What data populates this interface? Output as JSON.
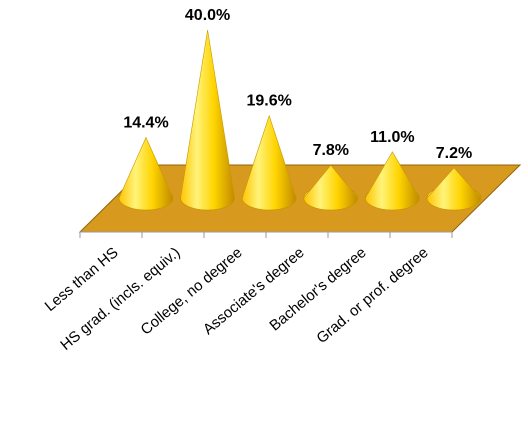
{
  "chart_data": {
    "type": "bar",
    "style": "3d-cone",
    "categories": [
      "Less than HS",
      "HS grad. (incls. equiv.)",
      "College, no degree",
      "Associate's degree",
      "Bachelor's degree",
      "Grad. or prof. degree"
    ],
    "values": [
      14.4,
      40.0,
      19.6,
      7.8,
      11.0,
      7.2
    ],
    "data_labels": [
      "14.4%",
      "40.0%",
      "19.6%",
      "7.8%",
      "11.0%",
      "7.2%"
    ],
    "title": "",
    "xlabel": "",
    "ylabel": "",
    "ylim": [
      0,
      40
    ],
    "grid": false,
    "legend": "none",
    "colors": {
      "cone_light": "#FFF37A",
      "cone_mid": "#FFD400",
      "cone_dark": "#B8860B",
      "floor": "#D89A1E",
      "floor_edge": "#8F6409",
      "axis": "#999999"
    }
  }
}
